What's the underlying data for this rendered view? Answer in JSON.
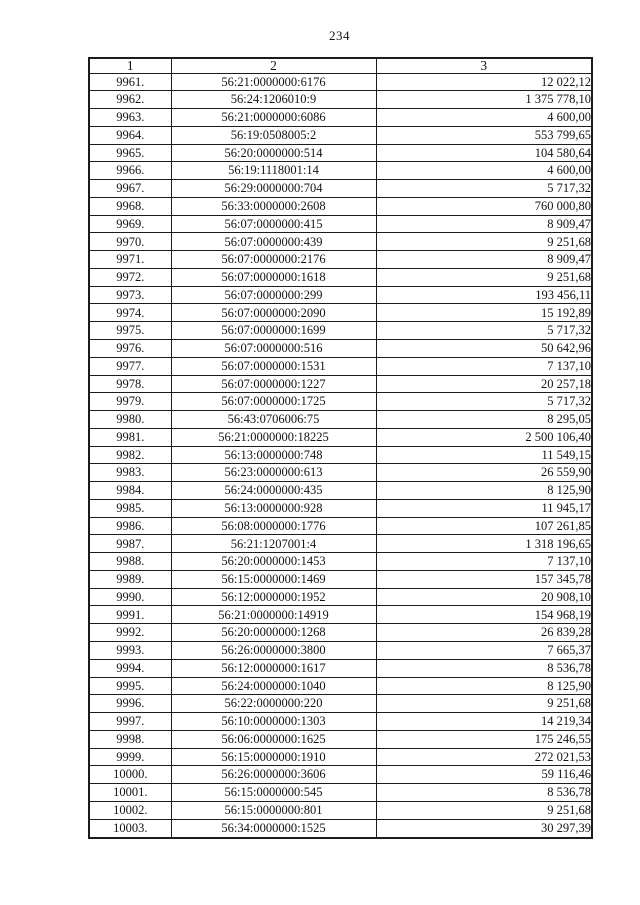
{
  "page": {
    "number": "234"
  },
  "table": {
    "columns": [
      "1",
      "2",
      "3"
    ],
    "rows": [
      {
        "num": "9961.",
        "cad": "56:21:0000000:6176",
        "val": "12 022,12"
      },
      {
        "num": "9962.",
        "cad": "56:24:1206010:9",
        "val": "1 375 778,10"
      },
      {
        "num": "9963.",
        "cad": "56:21:0000000:6086",
        "val": "4 600,00"
      },
      {
        "num": "9964.",
        "cad": "56:19:0508005:2",
        "val": "553 799,65"
      },
      {
        "num": "9965.",
        "cad": "56:20:0000000:514",
        "val": "104 580,64"
      },
      {
        "num": "9966.",
        "cad": "56:19:1118001:14",
        "val": "4 600,00"
      },
      {
        "num": "9967.",
        "cad": "56:29:0000000:704",
        "val": "5 717,32"
      },
      {
        "num": "9968.",
        "cad": "56:33:0000000:2608",
        "val": "760 000,80"
      },
      {
        "num": "9969.",
        "cad": "56:07:0000000:415",
        "val": "8 909,47"
      },
      {
        "num": "9970.",
        "cad": "56:07:0000000:439",
        "val": "9 251,68"
      },
      {
        "num": "9971.",
        "cad": "56:07:0000000:2176",
        "val": "8 909,47"
      },
      {
        "num": "9972.",
        "cad": "56:07:0000000:1618",
        "val": "9 251,68"
      },
      {
        "num": "9973.",
        "cad": "56:07:0000000:299",
        "val": "193 456,11"
      },
      {
        "num": "9974.",
        "cad": "56:07:0000000:2090",
        "val": "15 192,89"
      },
      {
        "num": "9975.",
        "cad": "56:07:0000000:1699",
        "val": "5 717,32"
      },
      {
        "num": "9976.",
        "cad": "56:07:0000000:516",
        "val": "50 642,96"
      },
      {
        "num": "9977.",
        "cad": "56:07:0000000:1531",
        "val": "7 137,10"
      },
      {
        "num": "9978.",
        "cad": "56:07:0000000:1227",
        "val": "20 257,18"
      },
      {
        "num": "9979.",
        "cad": "56:07:0000000:1725",
        "val": "5 717,32"
      },
      {
        "num": "9980.",
        "cad": "56:43:0706006:75",
        "val": "8 295,05"
      },
      {
        "num": "9981.",
        "cad": "56:21:0000000:18225",
        "val": "2 500 106,40"
      },
      {
        "num": "9982.",
        "cad": "56:13:0000000:748",
        "val": "11 549,15"
      },
      {
        "num": "9983.",
        "cad": "56:23:0000000:613",
        "val": "26 559,90"
      },
      {
        "num": "9984.",
        "cad": "56:24:0000000:435",
        "val": "8 125,90"
      },
      {
        "num": "9985.",
        "cad": "56:13:0000000:928",
        "val": "11 945,17"
      },
      {
        "num": "9986.",
        "cad": "56:08:0000000:1776",
        "val": "107 261,85"
      },
      {
        "num": "9987.",
        "cad": "56:21:1207001:4",
        "val": "1 318 196,65"
      },
      {
        "num": "9988.",
        "cad": "56:20:0000000:1453",
        "val": "7 137,10"
      },
      {
        "num": "9989.",
        "cad": "56:15:0000000:1469",
        "val": "157 345,78"
      },
      {
        "num": "9990.",
        "cad": "56:12:0000000:1952",
        "val": "20 908,10"
      },
      {
        "num": "9991.",
        "cad": "56:21:0000000:14919",
        "val": "154 968,19"
      },
      {
        "num": "9992.",
        "cad": "56:20:0000000:1268",
        "val": "26 839,28"
      },
      {
        "num": "9993.",
        "cad": "56:26:0000000:3800",
        "val": "7 665,37"
      },
      {
        "num": "9994.",
        "cad": "56:12:0000000:1617",
        "val": "8 536,78"
      },
      {
        "num": "9995.",
        "cad": "56:24:0000000:1040",
        "val": "8 125,90"
      },
      {
        "num": "9996.",
        "cad": "56:22:0000000:220",
        "val": "9 251,68"
      },
      {
        "num": "9997.",
        "cad": "56:10:0000000:1303",
        "val": "14 219,34"
      },
      {
        "num": "9998.",
        "cad": "56:06:0000000:1625",
        "val": "175 246,55"
      },
      {
        "num": "9999.",
        "cad": "56:15:0000000:1910",
        "val": "272 021,53"
      },
      {
        "num": "10000.",
        "cad": "56:26:0000000:3606",
        "val": "59 116,46"
      },
      {
        "num": "10001.",
        "cad": "56:15:0000000:545",
        "val": "8 536,78"
      },
      {
        "num": "10002.",
        "cad": "56:15:0000000:801",
        "val": "9 251,68"
      },
      {
        "num": "10003.",
        "cad": "56:34:0000000:1525",
        "val": "30 297,39"
      }
    ]
  }
}
